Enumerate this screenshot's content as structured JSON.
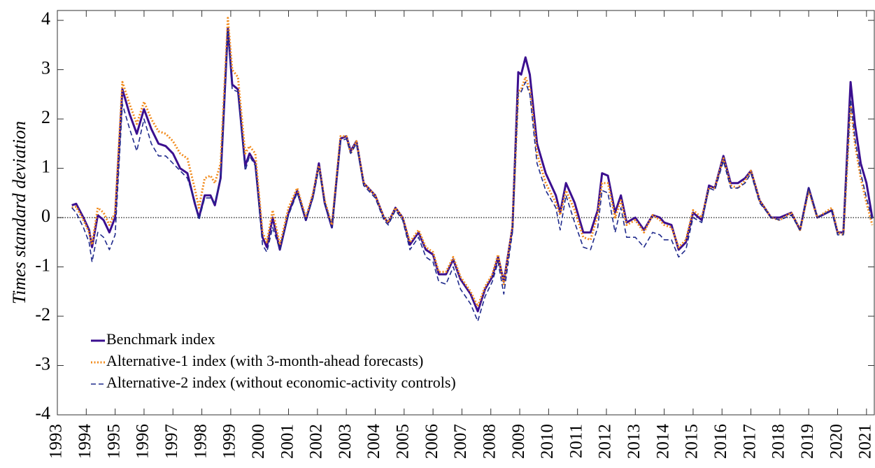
{
  "chart_data": {
    "type": "line",
    "y_label": "Times standard deviation",
    "xlim": [
      1993,
      2021.27
    ],
    "ylim": [
      -4,
      4.2
    ],
    "xticks": [
      1993,
      1994,
      1995,
      1996,
      1997,
      1998,
      1999,
      2000,
      2001,
      2002,
      2003,
      2004,
      2005,
      2006,
      2007,
      2008,
      2009,
      2010,
      2011,
      2012,
      2013,
      2014,
      2015,
      2016,
      2017,
      2018,
      2019,
      2020,
      2021
    ],
    "yticks": [
      -4,
      -3,
      -2,
      -1,
      0,
      1,
      2,
      3,
      4
    ],
    "zero_line": true,
    "legend": "lower left",
    "x": [
      1993.5,
      1993.65,
      1993.9,
      1994.1,
      1994.2,
      1994.4,
      1994.6,
      1994.8,
      1995.0,
      1995.25,
      1995.5,
      1995.75,
      1996.0,
      1996.25,
      1996.5,
      1996.75,
      1997.0,
      1997.25,
      1997.5,
      1997.75,
      1997.9,
      1998.1,
      1998.3,
      1998.45,
      1998.65,
      1998.9,
      1999.05,
      1999.25,
      1999.5,
      1999.65,
      1999.85,
      2000.1,
      2000.25,
      2000.45,
      2000.7,
      2001.0,
      2001.3,
      2001.6,
      2001.85,
      2002.05,
      2002.25,
      2002.5,
      2002.8,
      2003.0,
      2003.15,
      2003.35,
      2003.6,
      2004.0,
      2004.3,
      2004.45,
      2004.7,
      2004.95,
      2005.2,
      2005.5,
      2005.75,
      2006.0,
      2006.2,
      2006.45,
      2006.7,
      2006.95,
      2007.3,
      2007.55,
      2007.8,
      2008.05,
      2008.25,
      2008.45,
      2008.75,
      2008.95,
      2009.05,
      2009.2,
      2009.35,
      2009.6,
      2009.9,
      2010.25,
      2010.4,
      2010.6,
      2010.9,
      2011.2,
      2011.45,
      2011.7,
      2011.85,
      2012.05,
      2012.3,
      2012.5,
      2012.7,
      2013.0,
      2013.3,
      2013.6,
      2013.85,
      2014.0,
      2014.25,
      2014.5,
      2014.75,
      2015.0,
      2015.3,
      2015.55,
      2015.75,
      2016.05,
      2016.3,
      2016.55,
      2016.8,
      2017.0,
      2017.3,
      2017.7,
      2018.0,
      2018.4,
      2018.7,
      2019.0,
      2019.3,
      2019.8,
      2020.0,
      2020.2,
      2020.45,
      2020.6,
      2020.8,
      2021.0,
      2021.2
    ],
    "series": [
      {
        "name": "Benchmark index",
        "color": "#3b0f8f",
        "style": "solid",
        "width": 3,
        "values": [
          0.25,
          0.28,
          0.0,
          -0.25,
          -0.6,
          0.05,
          -0.05,
          -0.3,
          0.0,
          2.6,
          2.1,
          1.7,
          2.2,
          1.8,
          1.5,
          1.45,
          1.3,
          1.0,
          0.9,
          0.3,
          0.0,
          0.45,
          0.45,
          0.25,
          0.8,
          3.85,
          2.7,
          2.6,
          1.05,
          1.3,
          1.1,
          -0.4,
          -0.6,
          0.0,
          -0.65,
          0.1,
          0.55,
          -0.05,
          0.45,
          1.1,
          0.3,
          -0.2,
          1.6,
          1.65,
          1.35,
          1.55,
          0.7,
          0.45,
          0.0,
          -0.1,
          0.2,
          0.0,
          -0.55,
          -0.3,
          -0.65,
          -0.75,
          -1.15,
          -1.15,
          -0.85,
          -1.25,
          -1.55,
          -1.9,
          -1.45,
          -1.2,
          -0.8,
          -1.3,
          -0.2,
          2.95,
          2.9,
          3.25,
          2.9,
          1.5,
          0.9,
          0.45,
          0.1,
          0.7,
          0.3,
          -0.3,
          -0.3,
          0.15,
          0.9,
          0.85,
          0.1,
          0.45,
          -0.1,
          0.0,
          -0.25,
          0.05,
          0.0,
          -0.1,
          -0.15,
          -0.65,
          -0.5,
          0.1,
          -0.05,
          0.65,
          0.6,
          1.25,
          0.7,
          0.7,
          0.8,
          0.95,
          0.35,
          0.0,
          0.0,
          0.1,
          -0.25,
          0.6,
          0.0,
          0.15,
          -0.3,
          -0.3,
          2.75,
          1.9,
          1.1,
          0.7,
          0.0
        ]
      },
      {
        "name": "Alternative-1 index (with 3-month-ahead forecasts)",
        "color": "#f28c1e",
        "style": "dotted",
        "width": 3,
        "values": [
          0.2,
          0.22,
          -0.05,
          -0.3,
          -0.55,
          0.2,
          0.1,
          -0.15,
          0.1,
          2.75,
          2.3,
          1.9,
          2.35,
          2.0,
          1.75,
          1.7,
          1.55,
          1.3,
          1.2,
          0.6,
          0.2,
          0.8,
          0.85,
          0.7,
          1.1,
          4.05,
          3.0,
          2.85,
          1.3,
          1.45,
          1.3,
          -0.3,
          -0.5,
          0.15,
          -0.55,
          0.2,
          0.6,
          0.0,
          0.5,
          1.05,
          0.35,
          -0.15,
          1.65,
          1.65,
          1.3,
          1.55,
          0.7,
          0.45,
          0.0,
          -0.1,
          0.2,
          0.0,
          -0.5,
          -0.25,
          -0.6,
          -0.7,
          -1.1,
          -1.1,
          -0.8,
          -1.2,
          -1.5,
          -1.8,
          -1.4,
          -1.15,
          -0.75,
          -1.35,
          -0.2,
          2.55,
          2.6,
          2.85,
          2.6,
          1.3,
          0.7,
          0.3,
          0.05,
          0.55,
          0.15,
          -0.4,
          -0.45,
          0.05,
          0.7,
          0.7,
          0.0,
          0.35,
          -0.15,
          -0.05,
          -0.3,
          0.05,
          -0.05,
          -0.15,
          -0.2,
          -0.6,
          -0.45,
          0.15,
          0.0,
          0.6,
          0.6,
          1.2,
          0.65,
          0.6,
          0.75,
          0.95,
          0.35,
          0.0,
          -0.05,
          0.1,
          -0.25,
          0.55,
          0.0,
          0.2,
          -0.3,
          -0.35,
          2.3,
          1.5,
          0.8,
          0.3,
          -0.15
        ]
      },
      {
        "name": "Alternative-2 index (without economic-activity controls)",
        "color": "#1f2a8c",
        "style": "dashed",
        "width": 1.6,
        "values": [
          0.2,
          0.1,
          -0.2,
          -0.5,
          -0.9,
          -0.3,
          -0.4,
          -0.65,
          -0.35,
          2.3,
          1.8,
          1.35,
          2.0,
          1.5,
          1.25,
          1.25,
          1.1,
          0.95,
          0.8,
          0.35,
          -0.05,
          0.4,
          0.4,
          0.3,
          0.8,
          3.8,
          2.6,
          2.55,
          0.95,
          1.25,
          1.05,
          -0.55,
          -0.7,
          -0.2,
          -0.65,
          0.05,
          0.5,
          -0.05,
          0.4,
          1.0,
          0.3,
          -0.2,
          1.55,
          1.6,
          1.3,
          1.5,
          0.65,
          0.4,
          -0.05,
          -0.15,
          0.15,
          -0.05,
          -0.65,
          -0.4,
          -0.8,
          -0.9,
          -1.3,
          -1.35,
          -1.0,
          -1.45,
          -1.75,
          -2.1,
          -1.6,
          -1.3,
          -0.9,
          -1.55,
          -0.3,
          2.55,
          2.55,
          2.75,
          2.5,
          1.1,
          0.55,
          0.2,
          -0.25,
          0.45,
          -0.1,
          -0.6,
          -0.65,
          -0.2,
          0.55,
          0.5,
          -0.3,
          0.2,
          -0.4,
          -0.4,
          -0.6,
          -0.3,
          -0.35,
          -0.45,
          -0.45,
          -0.8,
          -0.65,
          0.0,
          -0.1,
          0.6,
          0.55,
          1.15,
          0.6,
          0.6,
          0.7,
          0.9,
          0.3,
          0.0,
          -0.05,
          0.05,
          -0.25,
          0.6,
          0.0,
          0.15,
          -0.35,
          -0.35,
          2.4,
          1.6,
          0.9,
          0.4,
          -0.05
        ]
      }
    ]
  }
}
